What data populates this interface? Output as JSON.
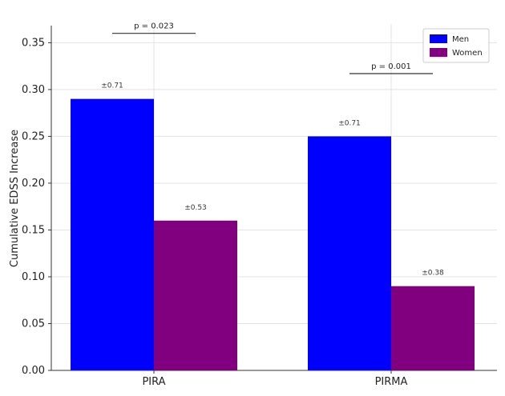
{
  "chart_data": {
    "type": "bar",
    "ylabel": "Cumulative EDSS Increase",
    "ylim": [
      0,
      0.37
    ],
    "yticks": [
      "0.00",
      "0.05",
      "0.10",
      "0.15",
      "0.20",
      "0.25",
      "0.30",
      "0.35"
    ],
    "categories": [
      "PIRA",
      "PIRMA"
    ],
    "series": [
      {
        "name": "Men",
        "color": "#0000ff",
        "values": [
          0.29,
          0.25
        ],
        "labels": [
          "±0.71",
          "±0.71"
        ]
      },
      {
        "name": "Women",
        "color": "#800080",
        "values": [
          0.16,
          0.09
        ],
        "labels": [
          "±0.53",
          "±0.38"
        ]
      }
    ],
    "annotations": [
      {
        "category": "PIRA",
        "text": "p = 0.023",
        "y": 0.36
      },
      {
        "category": "PIRMA",
        "text": "p = 0.001",
        "y": 0.317
      }
    ],
    "grid": true,
    "legend": "top-right"
  }
}
